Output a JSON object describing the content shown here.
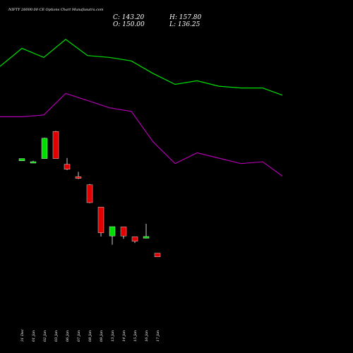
{
  "header": {
    "title": "NIFTY 26000.00  CE Options  Chart Munafasutra.com",
    "close": "C: 143.20",
    "open": "O: 150.00",
    "high": "H: 157.80",
    "low": "L: 136.25"
  },
  "chart_data": {
    "type": "candlestick",
    "categories": [
      "31 Dec",
      "01 Jan",
      "02 Jan",
      "03 Jan",
      "06 Jan",
      "07 Jan",
      "08 Jan",
      "09 Jan",
      "13 Jan",
      "14 Jan",
      "15 Jan",
      "16 Jan",
      "17 Jan"
    ],
    "candles": [
      {
        "open": 288,
        "close": 296,
        "high": 296,
        "low": 288
      },
      {
        "open": 284,
        "close": 285,
        "high": 288,
        "low": 280
      },
      {
        "open": 296,
        "close": 368,
        "high": 370,
        "low": 296
      },
      {
        "open": 392,
        "close": 296,
        "high": 394,
        "low": 296
      },
      {
        "open": 276,
        "close": 258,
        "high": 298,
        "low": 255
      },
      {
        "open": 232,
        "close": 226,
        "high": 249,
        "low": 223
      },
      {
        "open": 203,
        "close": 140,
        "high": 206,
        "low": 138
      },
      {
        "open": 124,
        "close": 33,
        "high": 124,
        "low": 20
      },
      {
        "open": 22,
        "close": 55,
        "high": 55,
        "low": -9
      },
      {
        "open": 54,
        "close": 22,
        "high": 54,
        "low": 12
      },
      {
        "open": 19,
        "close": 3,
        "high": 19,
        "low": -3
      },
      {
        "open": 14,
        "close": 20,
        "high": 65,
        "low": 14
      },
      {
        "open": -39,
        "close": -52,
        "high": -39,
        "low": -52
      }
    ],
    "line_series": [
      {
        "color": "#00e000",
        "values": [
          null,
          12.0,
          13.0,
          12.5,
          13.5,
          12.6,
          12.5,
          12.3,
          11.6,
          11.0,
          11.2,
          10.9,
          10.8,
          10.8,
          10.4
        ]
      },
      {
        "color": "#b000b0",
        "values": [
          null,
          9.2,
          9.2,
          9.3,
          10.5,
          10.1,
          9.7,
          9.5,
          7.8,
          6.6,
          7.2,
          6.9,
          6.6,
          6.7,
          5.9
        ]
      }
    ],
    "colors": {
      "up": "#00e000",
      "down": "#e00000",
      "wick": "#ffffff",
      "background": "#000000"
    }
  }
}
